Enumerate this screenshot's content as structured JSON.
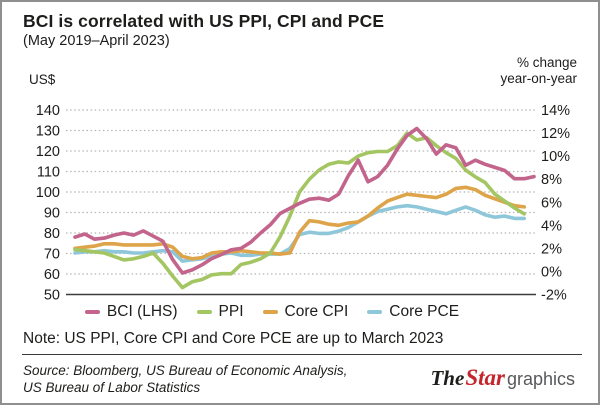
{
  "card": {
    "title": "BCI is correlated with US PPI, CPI and PCE",
    "subtitle": "(May 2019–April 2023)",
    "left_unit": "US$",
    "right_unit_line1": "% change",
    "right_unit_line2": "year-on-year",
    "note": "Note: US PPI, Core CPI and Core PCE are up to March 2023",
    "source_line1": "Source: Bloomberg, US Bureau of Economic Analysis,",
    "source_line2": "US Bureau of Labor Statistics",
    "logo": {
      "the": "The",
      "star": "Star",
      "graphics": "graphics"
    }
  },
  "colors": {
    "bci": "#c2648c",
    "ppi": "#a3c663",
    "core_cpi": "#dea449",
    "core_pce": "#8fc7da",
    "grid": "#b5b5b5",
    "baseline": "#3c3c3c",
    "star_red": "#c4262e"
  },
  "chart_data": {
    "type": "line",
    "title": "BCI is correlated with US PPI, CPI and PCE",
    "x_start": "May 2019",
    "x_end": "April 2023",
    "x_unit": "month",
    "grid": "dotted horizontal",
    "legend_position": "bottom",
    "left_axis": {
      "label": "US$",
      "ticks": [
        140,
        130,
        120,
        110,
        100,
        90,
        80,
        70,
        60,
        50
      ],
      "range": [
        50,
        140
      ]
    },
    "right_axis": {
      "label": "% change year-on-year",
      "ticks": [
        "14%",
        "12%",
        "10%",
        "8%",
        "6%",
        "4%",
        "2%",
        "0%",
        "-2%"
      ],
      "range": [
        -2,
        14
      ]
    },
    "note": "US PPI, Core CPI and Core PCE are up to March 2023",
    "series": [
      {
        "name": "BCI (LHS)",
        "axis": "left",
        "unit": "US$",
        "color": "#c2648c",
        "values": [
          78,
          79.5,
          77,
          77.5,
          79,
          80,
          79,
          81,
          78.5,
          76,
          67,
          60.5,
          62,
          64.5,
          67.5,
          69.5,
          71.8,
          72.5,
          75.5,
          80,
          84,
          89.5,
          92,
          94.5,
          96.5,
          97,
          96,
          99,
          108,
          115.5,
          105,
          107.5,
          113,
          121,
          127.5,
          131,
          126,
          118.5,
          123,
          121.5,
          113,
          115.5,
          113.5,
          112,
          110.5,
          106.5,
          106.5,
          107.5
        ]
      },
      {
        "name": "PPI",
        "axis": "right",
        "unit": "%",
        "color": "#a3c663",
        "values": [
          1.9,
          1.8,
          1.7,
          1.6,
          1.3,
          1.0,
          1.1,
          1.3,
          1.6,
          0.7,
          -0.4,
          -1.4,
          -0.9,
          -0.7,
          -0.3,
          -0.2,
          -0.2,
          0.6,
          0.8,
          1.1,
          1.6,
          3.0,
          4.8,
          6.9,
          8.0,
          8.8,
          9.3,
          9.5,
          9.4,
          10.0,
          10.3,
          10.4,
          10.4,
          10.9,
          12.0,
          11.4,
          11.6,
          10.9,
          10.3,
          9.8,
          8.8,
          8.2,
          7.7,
          6.7,
          6.1,
          5.5,
          5.0
        ]
      },
      {
        "name": "Core CPI",
        "axis": "right",
        "unit": "%",
        "color": "#dea449",
        "values": [
          2.0,
          2.1,
          2.2,
          2.4,
          2.4,
          2.3,
          2.3,
          2.3,
          2.3,
          2.4,
          2.1,
          1.3,
          1.1,
          1.2,
          1.6,
          1.7,
          1.7,
          1.8,
          1.7,
          1.6,
          1.6,
          1.5,
          1.6,
          3.4,
          4.4,
          4.3,
          4.1,
          4.0,
          4.2,
          4.3,
          4.8,
          5.5,
          6.1,
          6.4,
          6.7,
          6.6,
          6.5,
          6.4,
          6.7,
          7.2,
          7.3,
          7.1,
          6.6,
          6.3,
          6.0,
          5.7,
          5.6
        ]
      },
      {
        "name": "Core PCE",
        "axis": "right",
        "unit": "%",
        "color": "#8fc7da",
        "values": [
          1.6,
          1.7,
          1.7,
          1.8,
          1.7,
          1.7,
          1.6,
          1.6,
          1.7,
          1.8,
          1.7,
          0.9,
          1.0,
          1.1,
          1.3,
          1.5,
          1.6,
          1.4,
          1.4,
          1.5,
          1.5,
          1.5,
          2.0,
          3.2,
          3.4,
          3.3,
          3.3,
          3.5,
          3.8,
          4.3,
          4.8,
          5.2,
          5.4,
          5.6,
          5.7,
          5.6,
          5.4,
          5.2,
          5.0,
          5.3,
          5.6,
          5.3,
          4.9,
          4.7,
          4.8,
          4.6,
          4.6
        ]
      }
    ]
  }
}
